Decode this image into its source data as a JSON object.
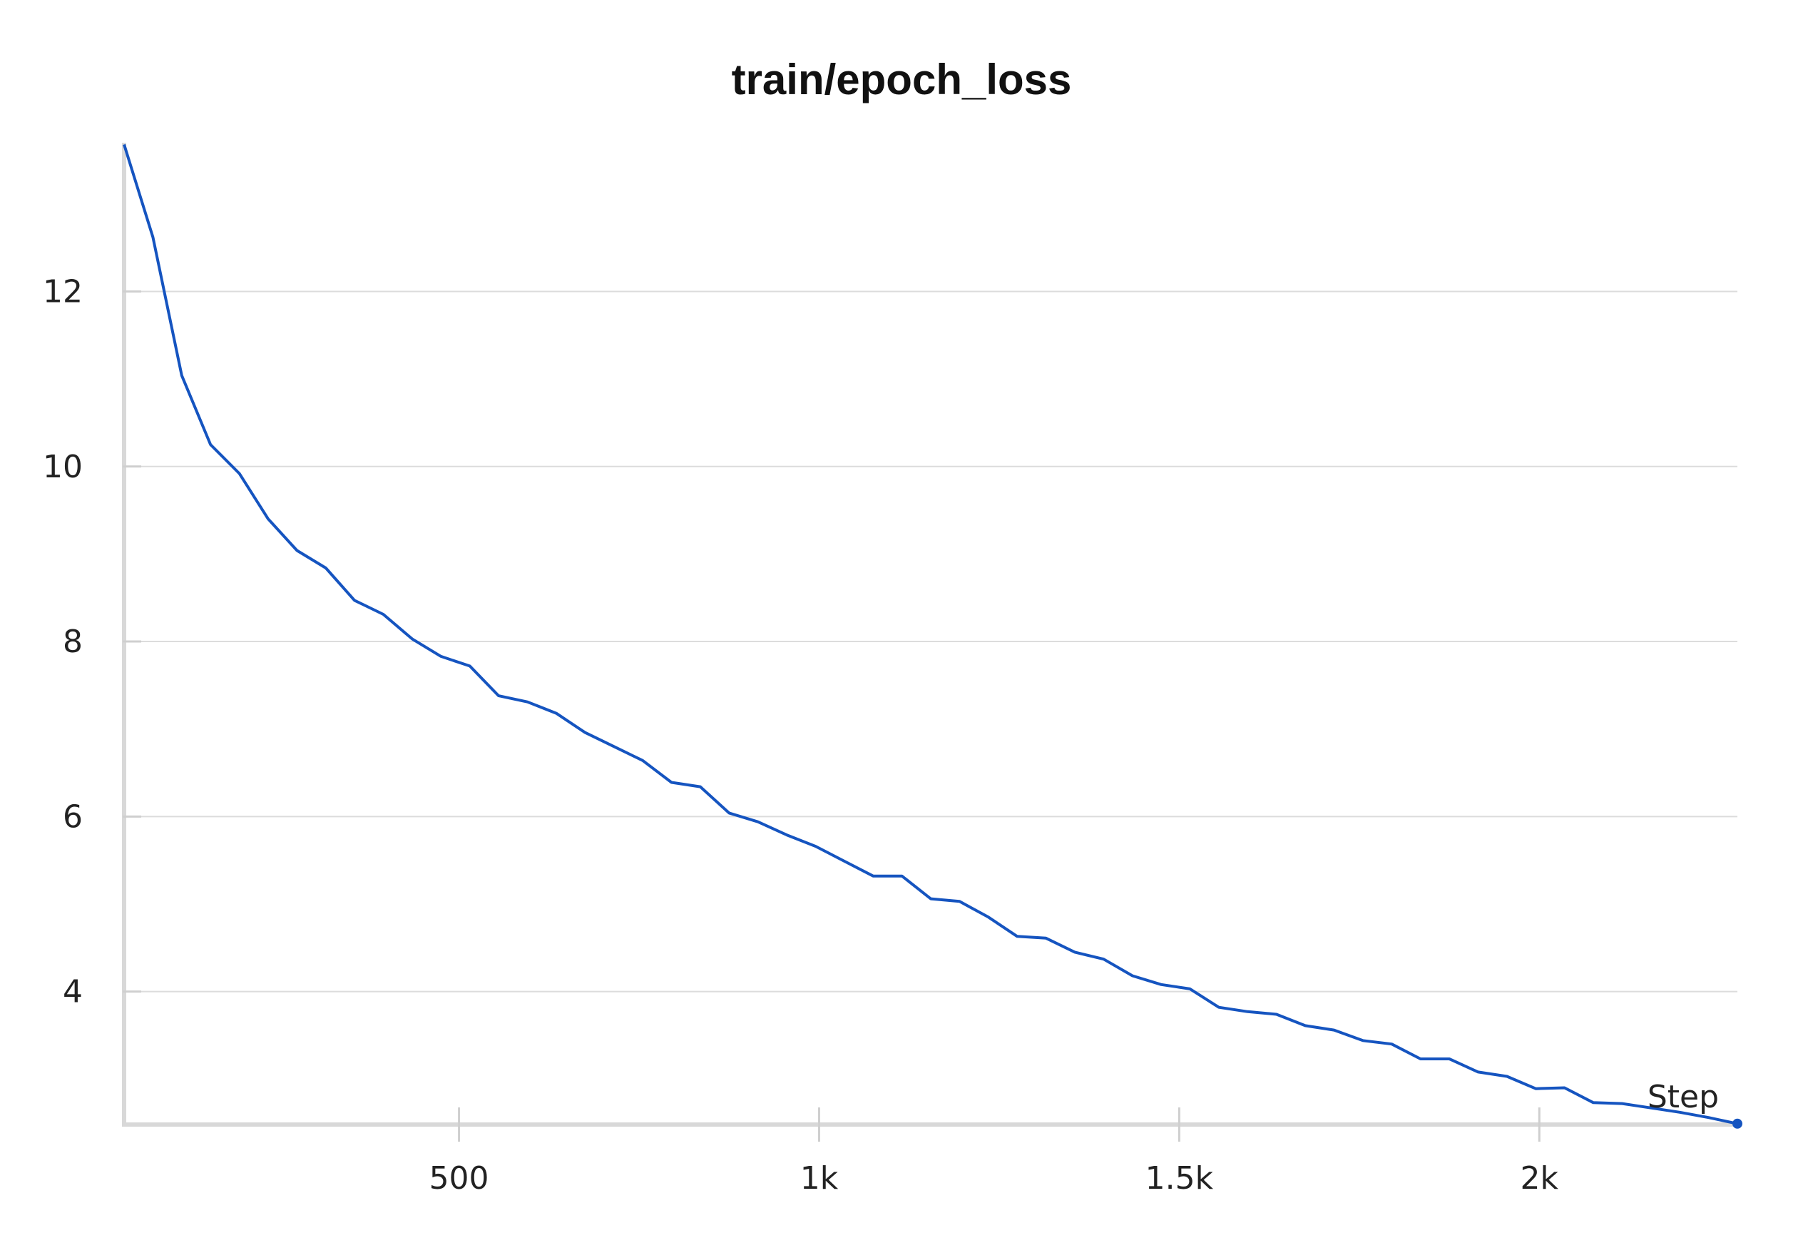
{
  "chart_data": {
    "type": "line",
    "title": "train/epoch_loss",
    "xlabel": "Step",
    "ylabel": "",
    "xlim": [
      35,
      2275
    ],
    "ylim": [
      2.48,
      13.7
    ],
    "x_ticks": [
      {
        "value": 500,
        "label": "500"
      },
      {
        "value": 1000,
        "label": "1k"
      },
      {
        "value": 1500,
        "label": "1.5k"
      },
      {
        "value": 2000,
        "label": "2k"
      }
    ],
    "y_ticks": [
      {
        "value": 4,
        "label": "4"
      },
      {
        "value": 6,
        "label": "6"
      },
      {
        "value": 8,
        "label": "8"
      },
      {
        "value": 10,
        "label": "10"
      },
      {
        "value": 12,
        "label": "12"
      }
    ],
    "grid": "horizontal",
    "line_color": "#1554c0",
    "series": [
      {
        "x": [
          35,
          75,
          115,
          155,
          195,
          235,
          275,
          315,
          355,
          395,
          435,
          475,
          515,
          555,
          595,
          635,
          675,
          715,
          755,
          795,
          835,
          875,
          915,
          955,
          995,
          1035,
          1075,
          1115,
          1155,
          1195,
          1235,
          1275,
          1315,
          1355,
          1395,
          1435,
          1475,
          1515,
          1555,
          1595,
          1635,
          1675,
          1715,
          1755,
          1795,
          1835,
          1875,
          1915,
          1955,
          1995,
          2035,
          2075,
          2115,
          2155,
          2195,
          2235,
          2275
        ],
        "y": [
          13.68,
          12.62,
          11.04,
          10.25,
          9.92,
          9.4,
          9.04,
          8.84,
          8.47,
          8.31,
          8.03,
          7.83,
          7.72,
          7.38,
          7.31,
          7.18,
          6.96,
          6.8,
          6.64,
          6.39,
          6.34,
          6.04,
          5.94,
          5.79,
          5.66,
          5.49,
          5.32,
          5.32,
          5.06,
          5.03,
          4.85,
          4.63,
          4.61,
          4.45,
          4.37,
          4.18,
          4.08,
          4.03,
          3.82,
          3.77,
          3.74,
          3.61,
          3.56,
          3.44,
          3.4,
          3.23,
          3.23,
          3.08,
          3.03,
          2.89,
          2.9,
          2.73,
          2.72,
          2.67,
          2.62,
          2.56,
          2.49
        ]
      }
    ]
  }
}
